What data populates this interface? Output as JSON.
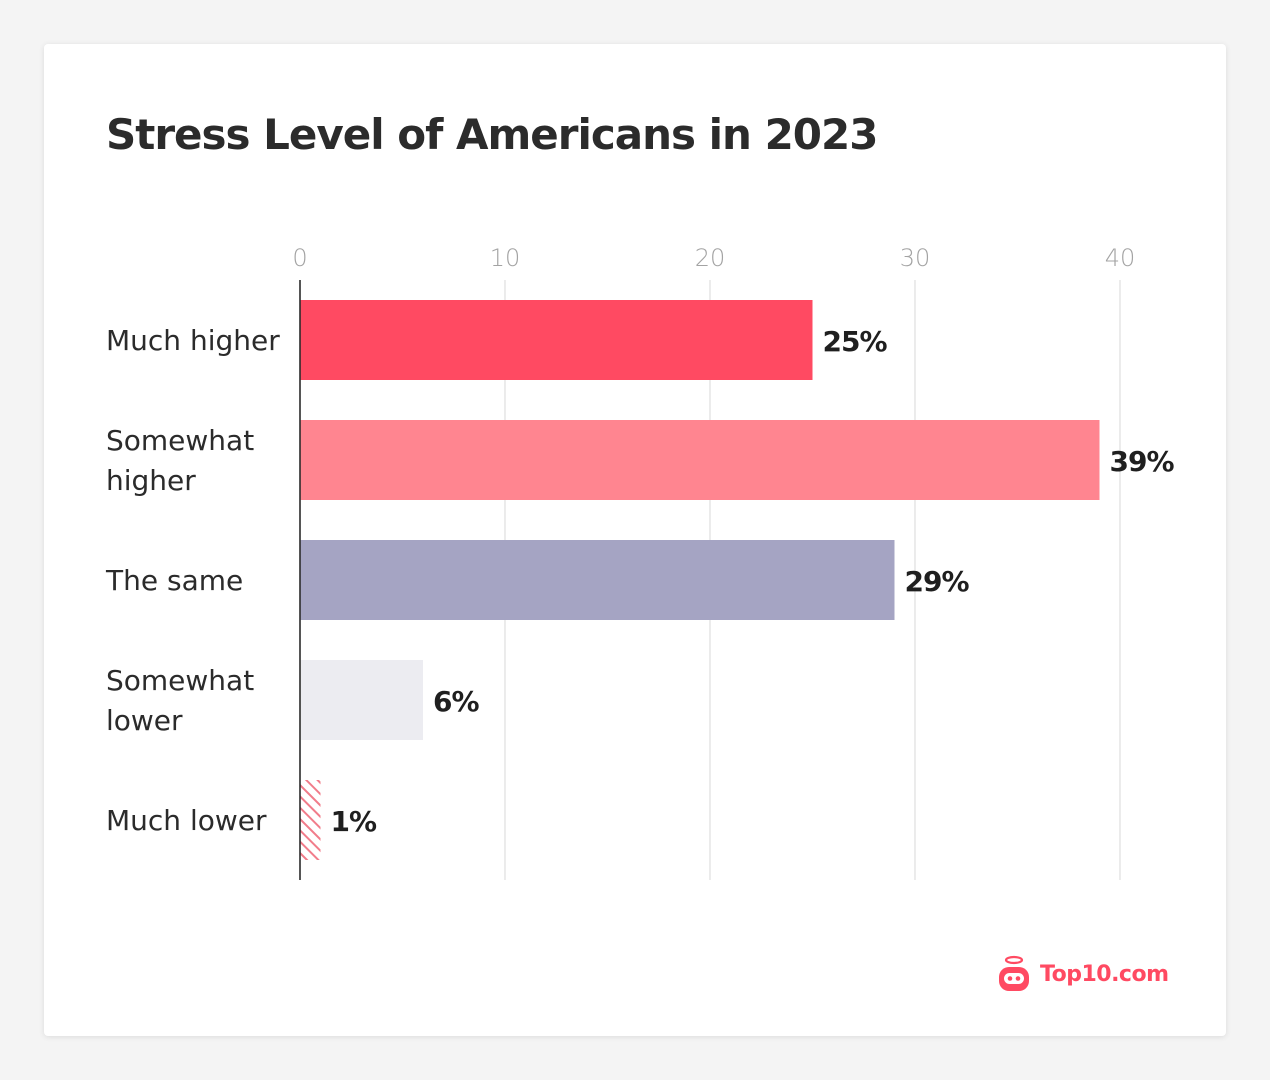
{
  "colors": {
    "brand": "#ff4a62"
  },
  "logo": {
    "icon": "robot-icon",
    "text": "Top10.com"
  },
  "chart_data": {
    "type": "bar",
    "orientation": "horizontal",
    "title": "Stress Level of Americans in 2023",
    "xlabel": "",
    "ylabel": "",
    "xlim": [
      0,
      40
    ],
    "xticks": [
      0,
      10,
      20,
      30,
      40
    ],
    "grid": true,
    "categories": [
      "Much higher",
      "Somewhat higher",
      "The same",
      "Somewhat lower",
      "Much lower"
    ],
    "values": [
      25,
      39,
      29,
      6,
      1
    ],
    "data_labels": [
      "25%",
      "39%",
      "29%",
      "6%",
      "1%"
    ],
    "bar_colors": [
      "#ff4a62",
      "#ff8590",
      "#a5a4c3",
      "#ececf1",
      "hatched #f17c8a"
    ]
  }
}
